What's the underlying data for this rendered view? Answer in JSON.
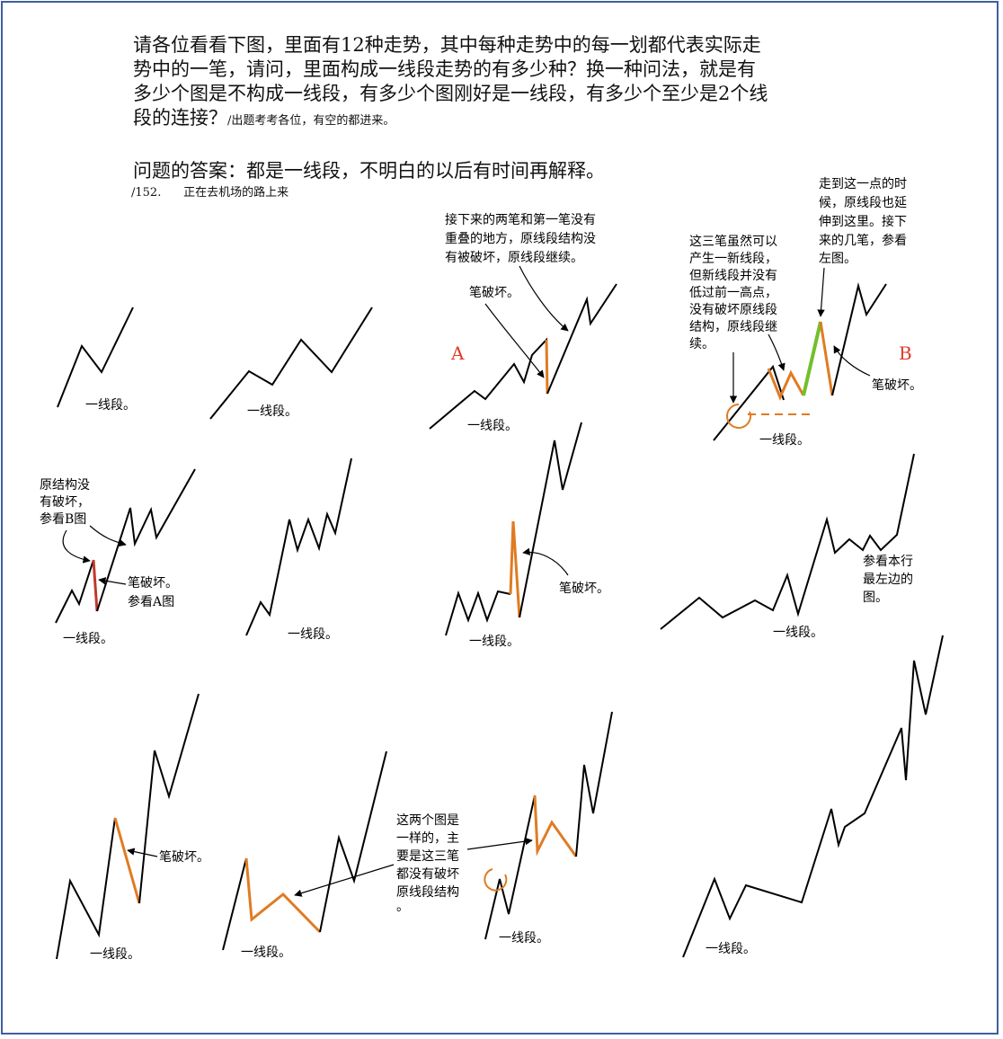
{
  "question": {
    "lines": [
      "请各位看看下图，里面有12种走势，其中每种走势中的每一划都代表实际走",
      "势中的一笔，请问，里面构成一线段走势的有多少种？换一种问法，就是有",
      "多少个图是不构成一线段，有多少个图刚好是一线段，有多少个至少是2个线"
    ],
    "last_line": "段的连接？",
    "note": "/出题考考各位，有空的都进来。"
  },
  "answer": "问题的答案：都是一线段，不明白的以后有时间再解释。",
  "post_ref": "/152.      正在去机场的路上来",
  "labels": {
    "segment": "一线段。",
    "A": "A",
    "B": "B",
    "break": "笔破坏。"
  },
  "annotations": {
    "a1": [
      "接下来的两笔和第一笔没有",
      "重叠的地方，原线段结构没",
      "有被破坏，原线段继续。"
    ],
    "b1": [
      "这三笔虽然可以",
      "产生一新线段，",
      "但新线段并没有",
      "低过前一高点，",
      "没有破坏原线段",
      "结构，原线段继",
      "续。"
    ],
    "b2": [
      "走到这一点的时",
      "候，原线段也延",
      "伸到这里。接下",
      "来的几笔，参看",
      "左图。"
    ],
    "r2a": [
      "原结构没",
      "有破坏，",
      "参看B图"
    ],
    "r2b": [
      "笔破坏。",
      "参看A图"
    ],
    "r2d": [
      "参看本行",
      "最左边的",
      "图。"
    ],
    "r3c": [
      "这两个图是",
      "一样的，主",
      "要是这三笔",
      "都没有破坏",
      "原线段结构",
      "。"
    ]
  },
  "colors": {
    "frame": "#3f5f9e",
    "orange": "#e07b22",
    "green": "#72c02c",
    "red": "#c0392b",
    "line": "#000000"
  }
}
